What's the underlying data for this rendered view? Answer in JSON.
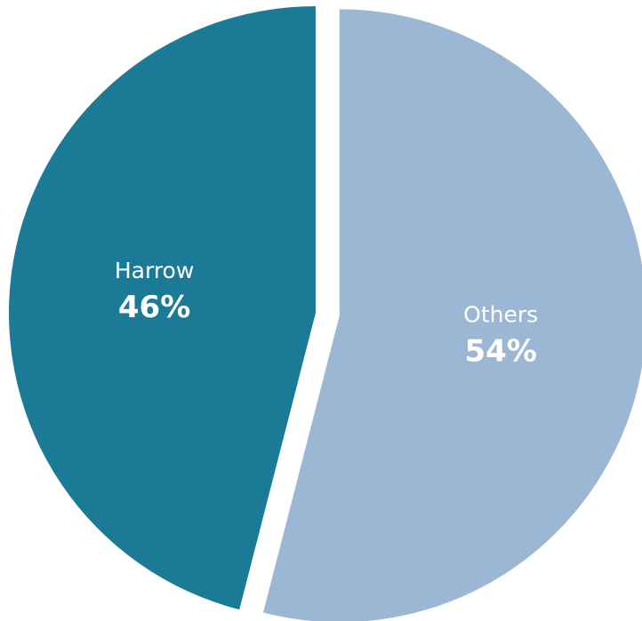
{
  "chart_data": {
    "type": "pie",
    "categories": [
      "Harrow",
      "Others"
    ],
    "values": [
      46,
      54
    ],
    "value_labels": [
      "46%",
      "54%"
    ],
    "colors": [
      "#1b7b96",
      "#9bb7d4"
    ],
    "exploded_slice": "Others",
    "start_angle": "12 o'clock, Others clockwise",
    "legend": "none"
  }
}
